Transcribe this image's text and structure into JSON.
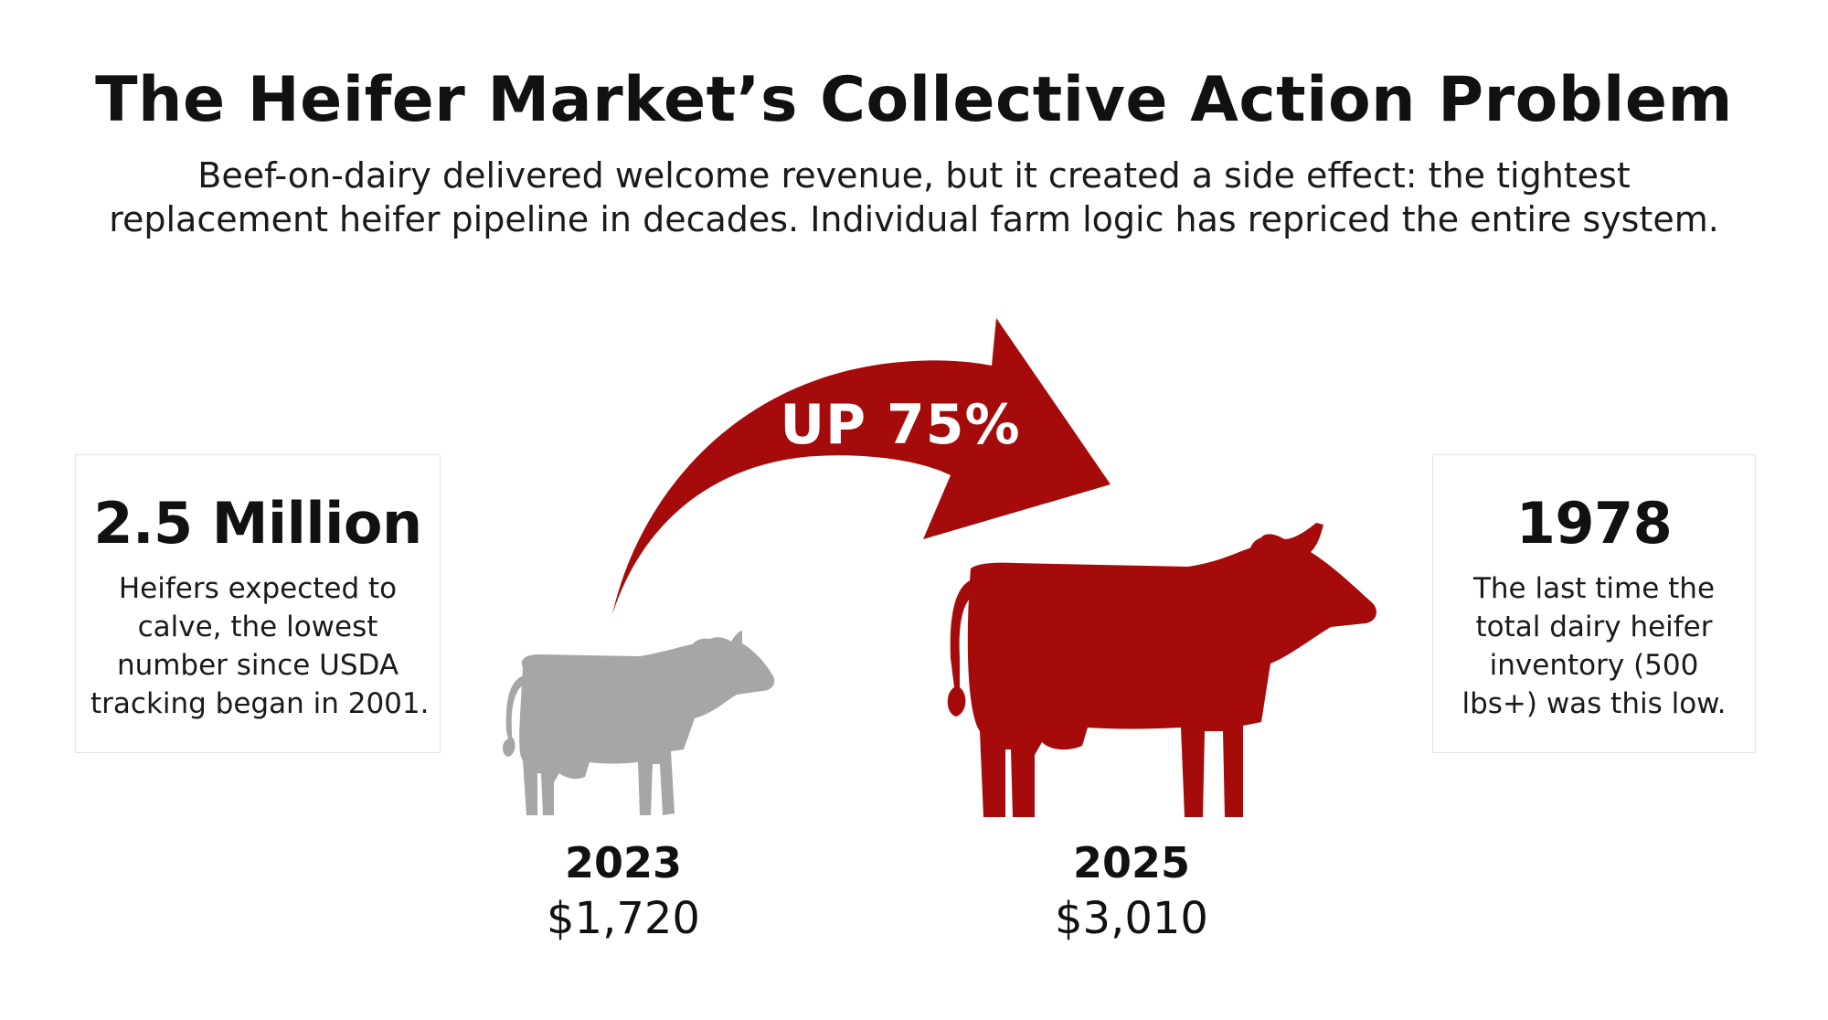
{
  "header": {
    "title": "The Heifer Market’s Collective Action Problem",
    "subtitle_line1": "Beef-on-dairy delivered welcome revenue, but it created a side effect: the tightest",
    "subtitle_line2": "replacement heifer pipeline in decades. Individual farm logic has repriced the entire system."
  },
  "left_stat": {
    "value": "2.5 Million",
    "desc_lines": [
      "Heifers expected to",
      "calve, the lowest",
      "number since USDA",
      "tracking began in 2001."
    ]
  },
  "right_stat": {
    "value": "1978",
    "desc_lines": [
      "The last time the",
      "total dairy heifer",
      "inventory (500",
      "lbs+) was this low."
    ]
  },
  "arrow": {
    "label": "UP 75%"
  },
  "before": {
    "year": "2023",
    "price": "$1,720",
    "icon": "cow-icon",
    "color": "#a6a6a6"
  },
  "after": {
    "year": "2025",
    "price": "$3,010",
    "icon": "cow-icon",
    "color": "#a50b0b"
  },
  "colors": {
    "accent": "#a50b0b",
    "muted": "#a6a6a6"
  }
}
